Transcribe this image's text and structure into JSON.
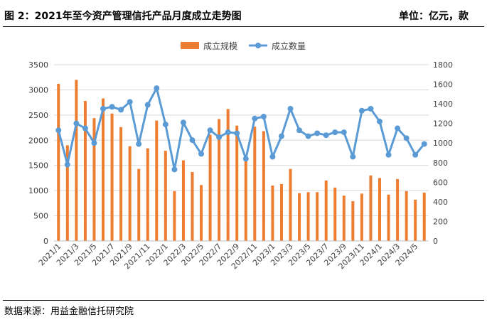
{
  "header": {
    "title": "图 2：2021年至今资产管理信托产品月度成立走势图",
    "unit": "单位：亿元，款"
  },
  "footer": {
    "source": "数据来源：用益金融信托研究院"
  },
  "colors": {
    "bar": "#ED7D31",
    "line": "#5B9BD5",
    "grid": "#D9D9D9",
    "axis": "#BFBFBF"
  },
  "chart_data": {
    "type": "bar",
    "categories": [
      "2021/1",
      "2021/2",
      "2021/3",
      "2021/4",
      "2021/5",
      "2021/6",
      "2021/7",
      "2021/8",
      "2021/9",
      "2021/10",
      "2021/11",
      "2021/12",
      "2022/1",
      "2022/2",
      "2022/3",
      "2022/4",
      "2022/5",
      "2022/6",
      "2022/7",
      "2022/8",
      "2022/9",
      "2022/10",
      "2022/11",
      "2022/12",
      "2023/1",
      "2023/2",
      "2023/3",
      "2023/4",
      "2023/5",
      "2023/6",
      "2023/7",
      "2023/8",
      "2023/9",
      "2023/10",
      "2023/11",
      "2023/12",
      "2024/1",
      "2024/2",
      "2024/3",
      "2024/4",
      "2024/5",
      "2024/6"
    ],
    "x_tick_labels": [
      "2021/1",
      "2021/3",
      "2021/5",
      "2021/7",
      "2021/9",
      "2021/11",
      "2022/1",
      "2022/3",
      "2022/5",
      "2022/7",
      "2022/9",
      "2022/11",
      "2023/1",
      "2023/3",
      "2023/5",
      "2023/7",
      "2023/9",
      "2023/11",
      "2024/1",
      "2024/3",
      "2024/5"
    ],
    "series": [
      {
        "name": "成立规模",
        "type": "bar",
        "axis": "left",
        "values": [
          3120,
          1900,
          3200,
          2780,
          2440,
          2830,
          2530,
          2260,
          1880,
          1430,
          1840,
          2390,
          1790,
          990,
          1600,
          1370,
          1110,
          2110,
          2420,
          2620,
          2290,
          1640,
          2270,
          2180,
          1100,
          1130,
          1430,
          950,
          970,
          970,
          1200,
          1060,
          900,
          790,
          940,
          1300,
          1250,
          920,
          1230,
          990,
          820,
          960
        ]
      },
      {
        "name": "成立数量",
        "type": "line",
        "axis": "right",
        "values": [
          1130,
          780,
          1200,
          1150,
          1000,
          1350,
          1370,
          1340,
          1420,
          990,
          1390,
          1560,
          1190,
          730,
          1210,
          1030,
          890,
          1130,
          1060,
          1110,
          1100,
          840,
          1250,
          1270,
          860,
          1070,
          1350,
          1130,
          1070,
          1100,
          1080,
          1110,
          1110,
          860,
          1330,
          1350,
          1220,
          880,
          1150,
          1050,
          880,
          990
        ]
      }
    ],
    "y_left": {
      "min": 0,
      "max": 3500,
      "step": 500
    },
    "y_right": {
      "min": 0,
      "max": 1800,
      "step": 200
    },
    "legend_position": "top-center",
    "grid": true
  }
}
